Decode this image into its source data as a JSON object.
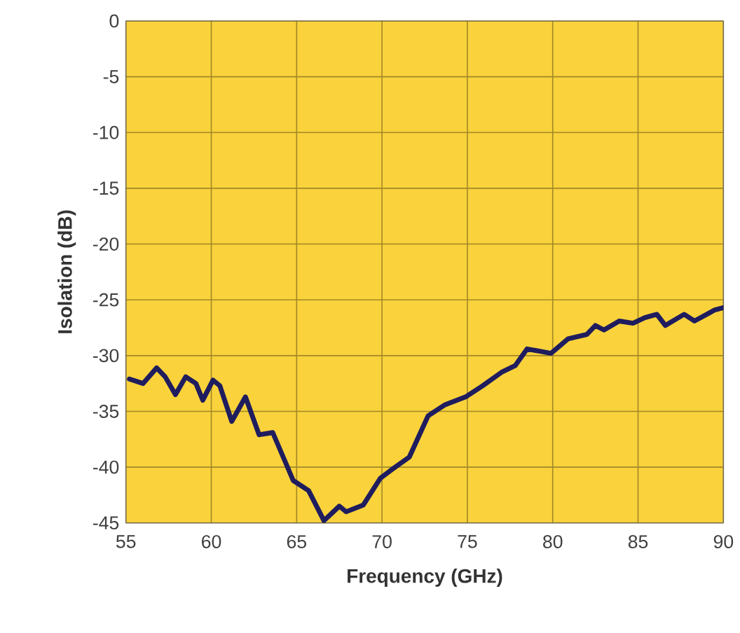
{
  "chart_data": {
    "type": "line",
    "xlabel": "Frequency (GHz)",
    "ylabel": "Isolation (dB)",
    "xlim": [
      55,
      90
    ],
    "ylim": [
      -45,
      0
    ],
    "xticks": [
      55,
      60,
      65,
      70,
      75,
      80,
      85,
      90
    ],
    "yticks": [
      -45,
      -40,
      -35,
      -30,
      -25,
      -20,
      -15,
      -10,
      -5,
      0
    ],
    "grid": true,
    "series": [
      {
        "color": "#1f1d5e",
        "x": [
          55.2,
          56.0,
          56.8,
          57.3,
          57.9,
          58.5,
          59.1,
          59.5,
          60.1,
          60.5,
          61.2,
          62.0,
          62.8,
          63.6,
          64.8,
          65.7,
          66.6,
          67.5,
          67.9,
          68.9,
          69.9,
          70.5,
          71.6,
          72.7,
          73.7,
          74.9,
          75.9,
          77.0,
          77.8,
          78.5,
          79.2,
          79.9,
          80.9,
          82.0,
          82.5,
          83.0,
          83.9,
          84.7,
          85.4,
          86.1,
          86.6,
          87.7,
          88.3,
          89.5,
          90.0
        ],
        "values": [
          -32.1,
          -32.5,
          -31.1,
          -31.9,
          -33.5,
          -31.9,
          -32.5,
          -34.0,
          -32.2,
          -32.7,
          -35.9,
          -33.7,
          -37.1,
          -36.9,
          -41.2,
          -42.1,
          -44.8,
          -43.5,
          -44.0,
          -43.4,
          -41.0,
          -40.3,
          -39.1,
          -35.4,
          -34.4,
          -33.7,
          -32.7,
          -31.5,
          -30.9,
          -29.4,
          -29.6,
          -29.8,
          -28.5,
          -28.1,
          -27.3,
          -27.7,
          -26.9,
          -27.1,
          -26.6,
          -26.3,
          -27.3,
          -26.3,
          -26.9,
          -25.9,
          -25.7
        ]
      }
    ]
  }
}
